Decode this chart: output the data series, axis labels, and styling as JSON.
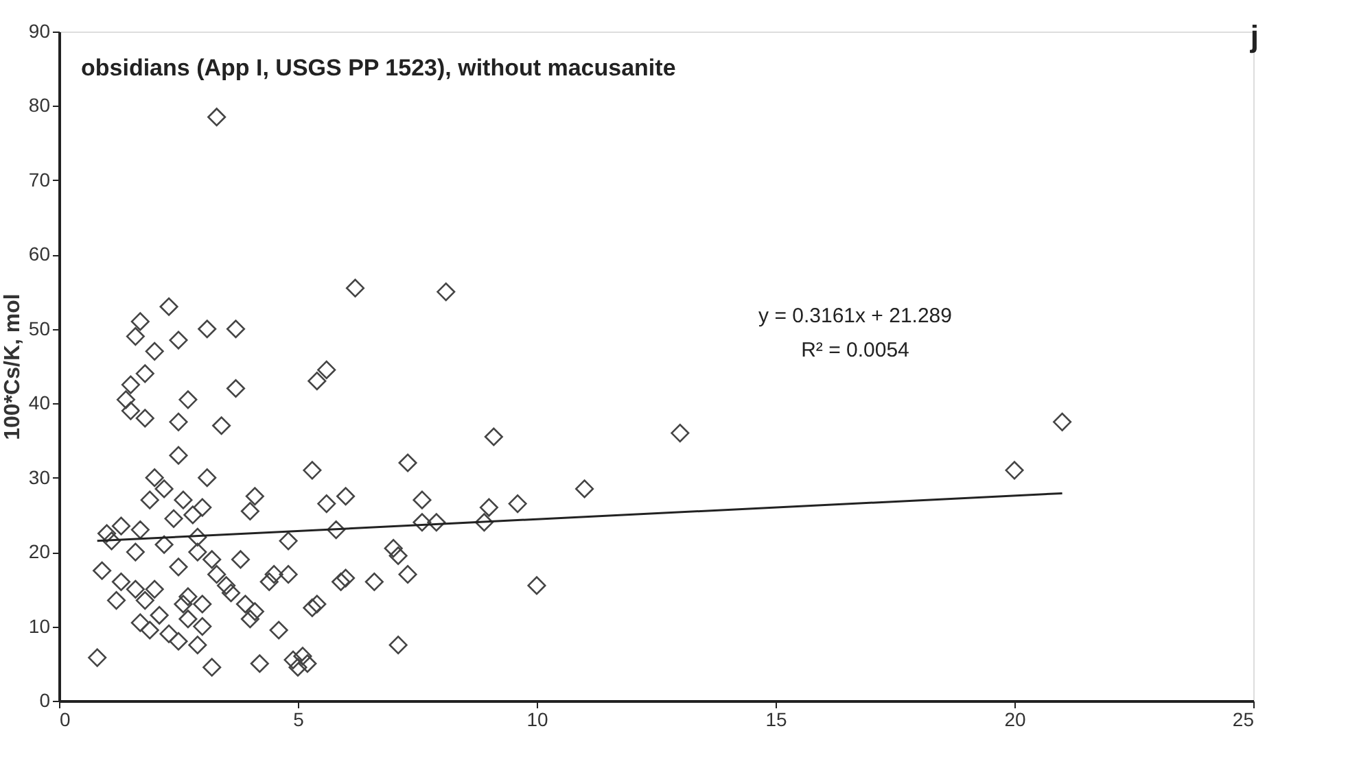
{
  "chart_data": {
    "type": "scatter",
    "title": "obsidians (App I, USGS PP 1523), without macusanite",
    "ylabel": "100*Cs/K, mol",
    "xlim": [
      0,
      25
    ],
    "xticks": [
      0,
      5,
      10,
      15,
      20,
      25
    ],
    "ylim": [
      0,
      90
    ],
    "yticks": [
      0,
      10,
      20,
      30,
      40,
      50,
      60,
      70,
      80,
      90
    ],
    "grid": false,
    "marker": "diamond",
    "annotations": [
      "j",
      "y = 0.3161x + 21.289",
      "R² = 0.0054"
    ],
    "series": [
      {
        "color": "#444444",
        "x": [
          0.8,
          3.3,
          6.2,
          8.1,
          2.3,
          1.7,
          3.1,
          3.7,
          1.6,
          2.5,
          2.0,
          1.8,
          5.6,
          5.4,
          1.5,
          3.7,
          1.4,
          2.7,
          1.5,
          1.8,
          2.5,
          3.4,
          9.1,
          13,
          21,
          20,
          11,
          2.5,
          5.3,
          7.3,
          2.0,
          3.1,
          2.2,
          4.1,
          6.0,
          5.6,
          7.6,
          9.0,
          9.6,
          8.9,
          7.9,
          7.6,
          4.0,
          2.6,
          1.9,
          2.4,
          1.3,
          1.0,
          1.7,
          2.9,
          4.8,
          5.8,
          7.0,
          7.1,
          6.0,
          5.9,
          6.6,
          7.3,
          4.5,
          4.8,
          4.4,
          3.2,
          3.8,
          3.3,
          2.9,
          2.2,
          1.6,
          0.9,
          1.3,
          1.6,
          1.8,
          2.0,
          1.2,
          2.6,
          2.1,
          3.0,
          2.3,
          2.5,
          3.2,
          4.2,
          4.9,
          5.0,
          5.1,
          5.2,
          7.1,
          10,
          5.4,
          5.3,
          4.1,
          4.6,
          3.5,
          3.9,
          2.9,
          2.7,
          1.9,
          2.5,
          2.8,
          3.0,
          1.1,
          2.7,
          3.0,
          3.6,
          4.0,
          1.7
        ],
        "values": [
          5.8,
          78.5,
          55.5,
          55,
          53,
          51,
          50,
          50,
          49,
          48.5,
          47,
          44,
          44.5,
          43,
          42.5,
          42,
          40.5,
          40.5,
          39,
          38,
          37.5,
          37,
          35.5,
          36,
          37.5,
          31,
          28.5,
          33,
          31,
          32,
          30,
          30,
          28.5,
          27.5,
          27.5,
          26.5,
          27,
          26,
          26.5,
          24,
          24,
          24,
          25.5,
          27,
          27,
          24.5,
          23.5,
          22.5,
          23,
          22,
          21.5,
          23,
          20.5,
          19.5,
          16.5,
          16,
          16,
          17,
          17,
          17,
          16,
          19,
          19,
          17,
          20,
          21,
          20,
          17.5,
          16,
          15,
          13.5,
          15,
          13.5,
          13,
          11.5,
          10,
          9,
          8,
          4.5,
          5,
          5.5,
          4.5,
          6,
          5,
          7.5,
          15.5,
          13,
          12.5,
          12,
          9.5,
          15.5,
          13,
          7.5,
          11,
          9.5,
          18,
          25,
          26,
          21.5,
          14,
          13,
          14.5,
          11,
          10.5
        ]
      },
      {
        "type": "line",
        "marker": "none",
        "line_style": "solid",
        "color": "#222222",
        "x": [
          0.8,
          21
        ],
        "values": [
          21.5,
          27.9
        ]
      }
    ]
  }
}
